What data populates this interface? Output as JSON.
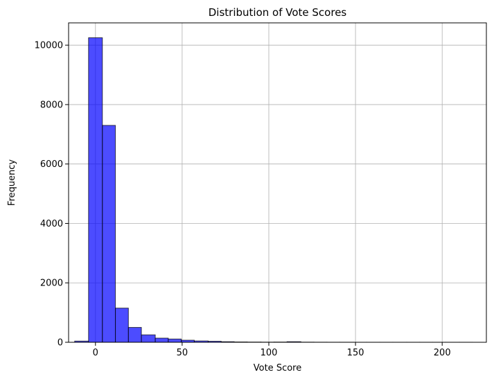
{
  "chart_data": {
    "type": "bar",
    "title": "Distribution of Vote Scores",
    "xlabel": "Vote Score",
    "ylabel": "Frequency",
    "xlim": [
      -15.5,
      225.5
    ],
    "ylim": [
      0,
      10750
    ],
    "xticks": [
      0,
      50,
      100,
      150,
      200
    ],
    "yticks": [
      0,
      2000,
      4000,
      6000,
      8000,
      10000
    ],
    "grid": true,
    "bar_color": "#0000ff",
    "bar_edge_color": "#000000",
    "bin_edges": [
      -12.0,
      -4.0,
      4.0,
      11.5,
      19.0,
      26.5,
      34.5,
      42.0,
      49.5,
      57.0,
      65.0,
      72.5,
      80.0,
      87.5,
      95.5,
      103.0,
      110.5,
      118.5,
      126.0,
      133.5,
      141.0,
      149.0,
      156.5,
      164.0,
      171.5,
      179.5,
      187.0,
      194.5,
      202.0,
      210.0,
      217.5
    ],
    "values": [
      40,
      10250,
      7300,
      1150,
      500,
      250,
      140,
      110,
      70,
      45,
      35,
      20,
      12,
      8,
      5,
      8,
      20,
      5,
      3,
      2,
      2,
      1,
      1,
      1,
      1,
      1,
      1,
      1,
      1,
      1
    ]
  }
}
